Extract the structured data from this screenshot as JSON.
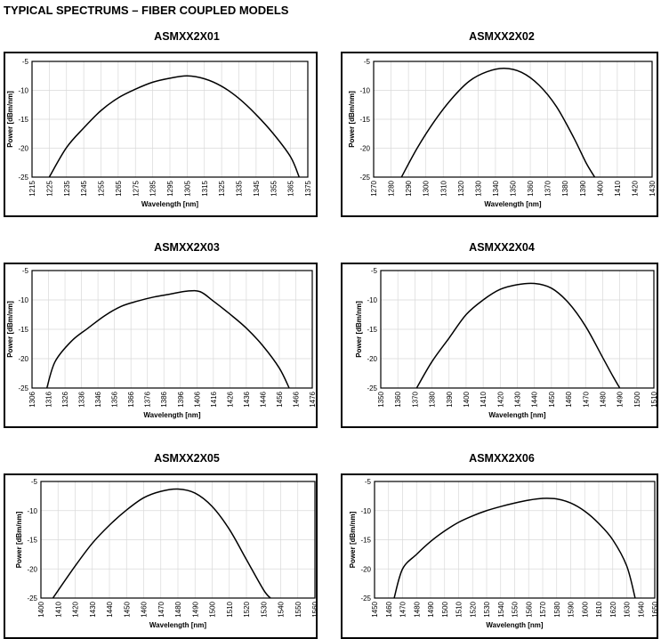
{
  "page": {
    "title": "TYPICAL SPECTRUMS – FIBER COUPLED MODELS"
  },
  "chart_data": [
    {
      "type": "line",
      "title": "ASMXX2X01",
      "xlabel": "Wavelength [nm]",
      "ylabel": "Power [dBm/nm]",
      "xlim": [
        1215,
        1375
      ],
      "ylim": [
        -25,
        -5
      ],
      "xticks": [
        1215,
        1225,
        1235,
        1245,
        1255,
        1265,
        1275,
        1285,
        1295,
        1305,
        1315,
        1325,
        1335,
        1345,
        1355,
        1365,
        1375
      ],
      "yticks": [
        -5,
        -10,
        -15,
        -20,
        -25
      ],
      "grid": true,
      "series": [
        {
          "x": [
            1225,
            1235,
            1245,
            1255,
            1265,
            1275,
            1285,
            1295,
            1305,
            1315,
            1325,
            1335,
            1345,
            1355,
            1365,
            1370
          ],
          "y": [
            -25,
            -19.9,
            -16.5,
            -13.5,
            -11.3,
            -9.8,
            -8.6,
            -7.9,
            -7.5,
            -8.0,
            -9.3,
            -11.4,
            -14.2,
            -17.5,
            -21.5,
            -25
          ]
        }
      ]
    },
    {
      "type": "line",
      "title": "ASMXX2X02",
      "xlabel": "Wavelength [nm]",
      "ylabel": "Power [dBm/nm]",
      "xlim": [
        1270,
        1430
      ],
      "ylim": [
        -25,
        -5
      ],
      "xticks": [
        1270,
        1280,
        1290,
        1300,
        1310,
        1320,
        1330,
        1340,
        1350,
        1360,
        1370,
        1380,
        1390,
        1400,
        1410,
        1420,
        1430
      ],
      "yticks": [
        -5,
        -10,
        -15,
        -20,
        -25
      ],
      "grid": true,
      "series": [
        {
          "x": [
            1286,
            1295,
            1305,
            1315,
            1325,
            1335,
            1345,
            1355,
            1365,
            1375,
            1385,
            1392,
            1397
          ],
          "y": [
            -25,
            -20,
            -15.3,
            -11.4,
            -8.4,
            -6.8,
            -6.2,
            -6.9,
            -9.1,
            -12.8,
            -18.2,
            -22.5,
            -25
          ]
        }
      ]
    },
    {
      "type": "line",
      "title": "ASMXX2X03",
      "xlabel": "Wavelength [nm]",
      "ylabel": "Power [dBm/nm]",
      "xlim": [
        1306,
        1476
      ],
      "ylim": [
        -25,
        -5
      ],
      "xticks": [
        1306,
        1316,
        1326,
        1336,
        1346,
        1356,
        1366,
        1376,
        1386,
        1396,
        1406,
        1416,
        1426,
        1436,
        1446,
        1456,
        1466,
        1476
      ],
      "yticks": [
        -5,
        -10,
        -15,
        -20,
        -25
      ],
      "grid": true,
      "series": [
        {
          "x": [
            1315,
            1320,
            1330,
            1340,
            1350,
            1360,
            1370,
            1380,
            1390,
            1400,
            1408,
            1416,
            1426,
            1436,
            1446,
            1456,
            1462
          ],
          "y": [
            -25,
            -20.5,
            -17,
            -14.8,
            -12.7,
            -11.1,
            -10.2,
            -9.5,
            -9.0,
            -8.5,
            -8.6,
            -10.2,
            -12.4,
            -14.8,
            -17.8,
            -21.6,
            -25
          ]
        }
      ]
    },
    {
      "type": "line",
      "title": "ASMXX2X04",
      "xlabel": "Wavelength [nm]",
      "ylabel": "Power [dBm/nm]",
      "xlim": [
        1350,
        1510
      ],
      "ylim": [
        -25,
        -5
      ],
      "xticks": [
        1350,
        1360,
        1370,
        1380,
        1390,
        1400,
        1410,
        1420,
        1430,
        1440,
        1450,
        1460,
        1470,
        1480,
        1490,
        1500,
        1510
      ],
      "yticks": [
        -5,
        -10,
        -15,
        -20,
        -25
      ],
      "grid": true,
      "series": [
        {
          "x": [
            1371,
            1380,
            1390,
            1400,
            1410,
            1420,
            1430,
            1440,
            1450,
            1460,
            1470,
            1480,
            1486,
            1490
          ],
          "y": [
            -25,
            -20.5,
            -16.5,
            -12.5,
            -10,
            -8.2,
            -7.4,
            -7.2,
            -8.0,
            -10.5,
            -14.5,
            -19.8,
            -23,
            -25
          ]
        }
      ]
    },
    {
      "type": "line",
      "title": "ASMXX2X05",
      "xlabel": "Wavelength [nm]",
      "ylabel": "Power [dBm/nm]",
      "xlim": [
        1400,
        1560
      ],
      "ylim": [
        -25,
        -5
      ],
      "xticks": [
        1400,
        1410,
        1420,
        1430,
        1440,
        1450,
        1460,
        1470,
        1480,
        1490,
        1500,
        1510,
        1520,
        1530,
        1540,
        1550,
        1560
      ],
      "yticks": [
        -5,
        -10,
        -15,
        -20,
        -25
      ],
      "grid": true,
      "series": [
        {
          "x": [
            1407,
            1420,
            1430,
            1440,
            1450,
            1460,
            1470,
            1480,
            1490,
            1500,
            1510,
            1520,
            1530,
            1534
          ],
          "y": [
            -25,
            -19.5,
            -15.6,
            -12.5,
            -9.9,
            -7.8,
            -6.7,
            -6.3,
            -7.0,
            -9.3,
            -13.2,
            -18.4,
            -23.6,
            -25
          ]
        }
      ]
    },
    {
      "type": "line",
      "title": "ASMXX2X06",
      "xlabel": "Wavelength [nm]",
      "ylabel": "Power [dBm/nm]",
      "xlim": [
        1450,
        1650
      ],
      "ylim": [
        -25,
        -5
      ],
      "xticks": [
        1450,
        1460,
        1470,
        1480,
        1490,
        1500,
        1510,
        1520,
        1530,
        1540,
        1550,
        1560,
        1570,
        1580,
        1590,
        1600,
        1610,
        1620,
        1630,
        1640,
        1650
      ],
      "yticks": [
        -5,
        -10,
        -15,
        -20,
        -25
      ],
      "grid": true,
      "series": [
        {
          "x": [
            1464,
            1470,
            1480,
            1490,
            1500,
            1510,
            1520,
            1530,
            1540,
            1550,
            1560,
            1570,
            1580,
            1590,
            1600,
            1610,
            1620,
            1630,
            1636
          ],
          "y": [
            -25,
            -20,
            -17.5,
            -15.3,
            -13.5,
            -12,
            -10.9,
            -10,
            -9.3,
            -8.7,
            -8.2,
            -7.9,
            -8.0,
            -8.7,
            -10.1,
            -12.2,
            -15,
            -19.5,
            -25
          ]
        }
      ]
    }
  ]
}
